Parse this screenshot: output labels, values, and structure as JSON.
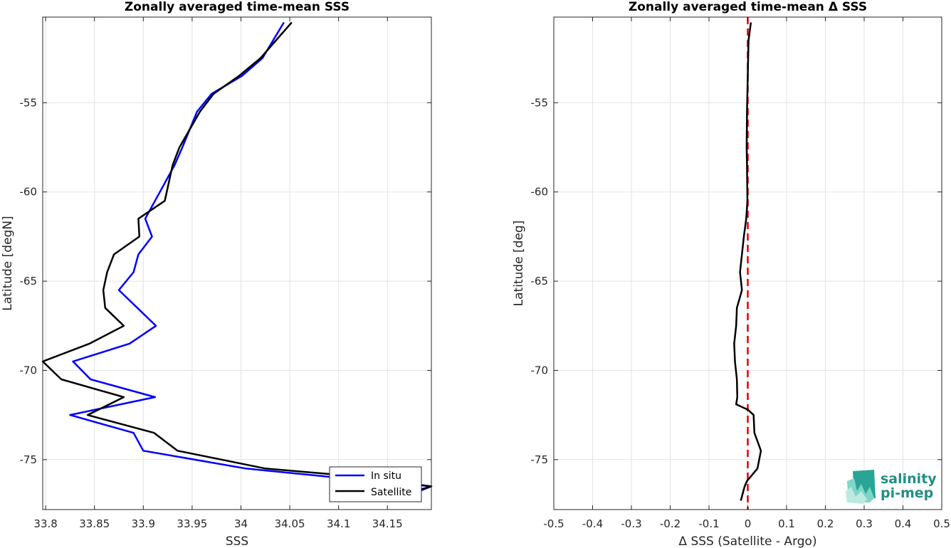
{
  "chart_data": [
    {
      "type": "line",
      "title": "Zonally averaged time-mean SSS",
      "xlabel": "SSS",
      "ylabel": "Latitude [degN]",
      "xlim": [
        33.797,
        34.195
      ],
      "ylim": [
        -77.8,
        -50.2
      ],
      "x_ticks": [
        "33.8",
        "33.85",
        "33.9",
        "33.95",
        "34",
        "34.05",
        "34.1",
        "34.15"
      ],
      "y_ticks": [
        "-55",
        "-60",
        "-65",
        "-70",
        "-75"
      ],
      "grid": true,
      "legend": "bottom-right",
      "series": [
        {
          "name": "In situ",
          "color": "#0000ff",
          "points": [
            [
              34.044,
              -50.5
            ],
            [
              34.022,
              -52.5
            ],
            [
              34.001,
              -53.5
            ],
            [
              33.97,
              -54.5
            ],
            [
              33.955,
              -55.5
            ],
            [
              33.94,
              -57.5
            ],
            [
              33.932,
              -58.5
            ],
            [
              33.922,
              -59.5
            ],
            [
              33.902,
              -61.5
            ],
            [
              33.909,
              -62.5
            ],
            [
              33.895,
              -63.5
            ],
            [
              33.89,
              -64.5
            ],
            [
              33.875,
              -65.5
            ],
            [
              33.913,
              -67.5
            ],
            [
              33.886,
              -68.5
            ],
            [
              33.828,
              -69.5
            ],
            [
              33.846,
              -70.5
            ],
            [
              33.912,
              -71.5
            ],
            [
              33.825,
              -72.5
            ],
            [
              33.89,
              -73.5
            ],
            [
              33.9,
              -74.5
            ],
            [
              34.005,
              -75.5
            ],
            [
              34.097,
              -76
            ],
            [
              34.195,
              -76.5
            ],
            [
              34.163,
              -77.2
            ]
          ]
        },
        {
          "name": "Satellite",
          "color": "#000000",
          "points": [
            [
              34.052,
              -50.5
            ],
            [
              34.02,
              -52.5
            ],
            [
              33.998,
              -53.5
            ],
            [
              33.972,
              -54.5
            ],
            [
              33.958,
              -55.5
            ],
            [
              33.937,
              -57.5
            ],
            [
              33.93,
              -58.5
            ],
            [
              33.922,
              -60.5
            ],
            [
              33.895,
              -61.5
            ],
            [
              33.896,
              -62.5
            ],
            [
              33.87,
              -63.5
            ],
            [
              33.863,
              -64.5
            ],
            [
              33.859,
              -65.5
            ],
            [
              33.861,
              -66.5
            ],
            [
              33.88,
              -67.5
            ],
            [
              33.845,
              -68.5
            ],
            [
              33.797,
              -69.5
            ],
            [
              33.816,
              -70.5
            ],
            [
              33.88,
              -71.5
            ],
            [
              33.843,
              -72.5
            ],
            [
              33.911,
              -73.5
            ],
            [
              33.935,
              -74.5
            ],
            [
              34.025,
              -75.5
            ],
            [
              34.11,
              -75.9
            ],
            [
              34.195,
              -76.5
            ],
            [
              34.143,
              -77.3
            ]
          ]
        }
      ]
    },
    {
      "type": "line",
      "title": "Zonally averaged time-mean Δ SSS",
      "xlabel": "Δ SSS (Satellite - Argo)",
      "ylabel": "Latitude [deg]",
      "xlim": [
        -0.5,
        0.5
      ],
      "ylim": [
        -77.8,
        -50.2
      ],
      "x_ticks": [
        "-0.5",
        "-0.4",
        "-0.3",
        "-0.2",
        "-0.1",
        "0",
        "0.1",
        "0.2",
        "0.3",
        "0.4",
        "0.5"
      ],
      "y_ticks": [
        "-55",
        "-60",
        "-65",
        "-70",
        "-75"
      ],
      "grid": true,
      "reference_line": {
        "x": 0,
        "color": "#e00000",
        "style": "dashed"
      },
      "series": [
        {
          "color": "#000000",
          "points": [
            [
              0.008,
              -50.5
            ],
            [
              0.002,
              -51.5
            ],
            [
              0.001,
              -52.5
            ],
            [
              0.0,
              -53.5
            ],
            [
              -0.002,
              -55.5
            ],
            [
              -0.003,
              -57.5
            ],
            [
              -0.002,
              -58.5
            ],
            [
              -0.001,
              -60.5
            ],
            [
              -0.004,
              -61.5
            ],
            [
              -0.01,
              -62.5
            ],
            [
              -0.015,
              -63.5
            ],
            [
              -0.02,
              -64.5
            ],
            [
              -0.015,
              -65.5
            ],
            [
              -0.028,
              -66.5
            ],
            [
              -0.03,
              -67.5
            ],
            [
              -0.035,
              -68.5
            ],
            [
              -0.033,
              -69.5
            ],
            [
              -0.028,
              -70.5
            ],
            [
              -0.027,
              -71.5
            ],
            [
              -0.03,
              -71.9
            ],
            [
              0.0,
              -72.2
            ],
            [
              0.015,
              -72.5
            ],
            [
              0.017,
              -73.5
            ],
            [
              0.034,
              -74.5
            ],
            [
              0.025,
              -75.5
            ],
            [
              -0.002,
              -76.2
            ],
            [
              -0.008,
              -76.5
            ],
            [
              -0.018,
              -77.3
            ]
          ]
        }
      ]
    }
  ],
  "legend": {
    "items": [
      {
        "label": "In situ",
        "color": "#0000ff"
      },
      {
        "label": "Satellite",
        "color": "#000000"
      }
    ]
  },
  "logo": {
    "line1": "salinity",
    "line2": "pi-mep"
  }
}
